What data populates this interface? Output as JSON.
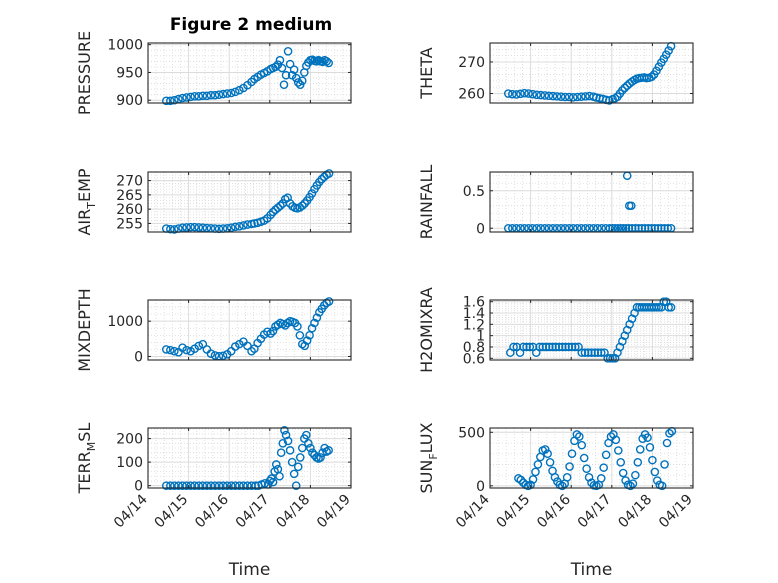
{
  "figure": {
    "title": "Figure 2 medium",
    "marker_color": "#0072bd",
    "grid_color": "#d9d9d9",
    "axis_color": "#262626"
  },
  "chart_data": [
    {
      "type": "scatter",
      "id": "pressure",
      "ylabel": "PRESSURE",
      "ylim": [
        895,
        1003
      ],
      "yticks": [
        900,
        950,
        1000
      ],
      "xlim": [
        14,
        19
      ],
      "xticks": [
        14,
        15,
        16,
        17,
        18,
        19
      ],
      "xticklabels": [],
      "x": [
        14.45,
        14.55,
        14.65,
        14.75,
        14.85,
        14.95,
        15.05,
        15.15,
        15.25,
        15.35,
        15.45,
        15.55,
        15.65,
        15.75,
        15.85,
        15.95,
        16.05,
        16.15,
        16.25,
        16.35,
        16.45,
        16.55,
        16.62,
        16.7,
        16.78,
        16.86,
        16.94,
        17.02,
        17.08,
        17.14,
        17.2,
        17.25,
        17.3,
        17.35,
        17.4,
        17.45,
        17.5,
        17.55,
        17.6,
        17.65,
        17.7,
        17.75,
        17.8,
        17.85,
        17.9,
        17.95,
        18.0,
        18.05,
        18.1,
        18.15,
        18.2,
        18.25,
        18.3,
        18.35,
        18.4,
        18.45
      ],
      "y": [
        899,
        899,
        900,
        902,
        904,
        905,
        906,
        907,
        907,
        908,
        908,
        909,
        909,
        910,
        911,
        912,
        913,
        915,
        918,
        922,
        927,
        933,
        938,
        942,
        946,
        949,
        952,
        956,
        958,
        960,
        964,
        972,
        958,
        928,
        945,
        988,
        965,
        945,
        955,
        940,
        932,
        928,
        935,
        950,
        962,
        968,
        972,
        973,
        971,
        970,
        972,
        970,
        969,
        972,
        970,
        967
      ]
    },
    {
      "type": "scatter",
      "id": "theta",
      "ylabel": "THETA",
      "ylim": [
        257,
        276
      ],
      "yticks": [
        260,
        270
      ],
      "xlim": [
        14,
        19
      ],
      "xticks": [
        14,
        15,
        16,
        17,
        18,
        19
      ],
      "xticklabels": [],
      "x": [
        14.45,
        14.55,
        14.65,
        14.75,
        14.85,
        14.95,
        15.05,
        15.15,
        15.25,
        15.35,
        15.45,
        15.55,
        15.65,
        15.75,
        15.85,
        15.95,
        16.05,
        16.15,
        16.25,
        16.35,
        16.45,
        16.55,
        16.62,
        16.7,
        16.78,
        16.86,
        16.94,
        17.02,
        17.08,
        17.14,
        17.2,
        17.26,
        17.32,
        17.38,
        17.44,
        17.5,
        17.56,
        17.62,
        17.68,
        17.74,
        17.8,
        17.86,
        17.92,
        17.98,
        18.04,
        18.1,
        18.16,
        18.22,
        18.28,
        18.34,
        18.4,
        18.46
      ],
      "y": [
        260.0,
        259.8,
        259.7,
        259.9,
        260.1,
        260.0,
        259.8,
        259.6,
        259.5,
        259.4,
        259.3,
        259.2,
        259.1,
        259.0,
        258.9,
        258.9,
        258.8,
        258.9,
        259.0,
        259.1,
        259.2,
        259.0,
        258.7,
        258.5,
        258.3,
        258.0,
        257.8,
        258.2,
        258.5,
        259.0,
        260.0,
        261.0,
        261.8,
        262.5,
        263.2,
        263.8,
        264.3,
        264.7,
        264.9,
        265.0,
        265.1,
        264.9,
        265.0,
        265.3,
        266.0,
        267.2,
        268.5,
        269.8,
        271.0,
        272.3,
        273.6,
        275.0
      ]
    },
    {
      "type": "scatter",
      "id": "air_temp",
      "ylabel": "AIR",
      "ylabel_sub": "T",
      "ylabel_rest": "EMP",
      "ylim": [
        252,
        273
      ],
      "yticks": [
        255,
        260,
        265,
        270
      ],
      "xlim": [
        14,
        19
      ],
      "xticks": [
        14,
        15,
        16,
        17,
        18,
        19
      ],
      "xticklabels": [],
      "x": [
        14.45,
        14.55,
        14.65,
        14.75,
        14.85,
        14.95,
        15.05,
        15.15,
        15.25,
        15.35,
        15.45,
        15.55,
        15.65,
        15.75,
        15.85,
        15.95,
        16.05,
        16.15,
        16.25,
        16.35,
        16.45,
        16.55,
        16.62,
        16.7,
        16.78,
        16.86,
        16.94,
        17.02,
        17.08,
        17.14,
        17.2,
        17.26,
        17.32,
        17.38,
        17.44,
        17.5,
        17.56,
        17.62,
        17.68,
        17.74,
        17.8,
        17.86,
        17.92,
        17.98,
        18.04,
        18.1,
        18.16,
        18.22,
        18.28,
        18.34,
        18.4,
        18.46
      ],
      "y": [
        253.2,
        253.0,
        252.9,
        253.2,
        253.5,
        253.6,
        253.7,
        253.7,
        253.6,
        253.5,
        253.4,
        253.3,
        253.2,
        253.1,
        253.2,
        253.3,
        253.5,
        253.8,
        254.0,
        254.3,
        254.6,
        254.8,
        255.0,
        255.2,
        255.6,
        256.0,
        256.8,
        258.0,
        259.0,
        259.8,
        260.5,
        261.2,
        262.0,
        263.5,
        264.0,
        262.0,
        261.0,
        260.5,
        260.3,
        260.6,
        261.2,
        262.0,
        263.0,
        264.2,
        265.5,
        267.0,
        268.3,
        269.5,
        270.5,
        271.3,
        272.0,
        272.5
      ]
    },
    {
      "type": "scatter",
      "id": "rainfall",
      "ylabel": "RAINFALL",
      "ylim": [
        -0.05,
        0.75
      ],
      "yticks": [
        0,
        0.5
      ],
      "xlim": [
        14,
        19
      ],
      "xticks": [
        14,
        15,
        16,
        17,
        18,
        19
      ],
      "xticklabels": [],
      "x": [
        14.45,
        14.55,
        14.65,
        14.75,
        14.85,
        14.95,
        15.05,
        15.15,
        15.25,
        15.35,
        15.45,
        15.55,
        15.65,
        15.75,
        15.85,
        15.95,
        16.05,
        16.15,
        16.25,
        16.35,
        16.45,
        16.55,
        16.65,
        16.75,
        16.85,
        16.95,
        17.02,
        17.08,
        17.15,
        17.22,
        17.28,
        17.35,
        17.42,
        17.5,
        17.58,
        17.66,
        17.74,
        17.82,
        17.9,
        17.98,
        18.06,
        18.14,
        18.22,
        18.3,
        18.38,
        18.46,
        17.38,
        17.43,
        17.48
      ],
      "y": [
        0,
        0,
        0,
        0,
        0,
        0,
        0,
        0,
        0,
        0,
        0,
        0,
        0,
        0,
        0,
        0,
        0,
        0,
        0,
        0,
        0,
        0,
        0,
        0,
        0,
        0,
        0,
        0,
        0,
        0,
        0,
        0,
        0,
        0,
        0,
        0,
        0,
        0,
        0,
        0,
        0,
        0,
        0,
        0,
        0,
        0,
        0.7,
        0.3,
        0.3
      ]
    },
    {
      "type": "scatter",
      "id": "mixdepth",
      "ylabel": "MIXDEPTH",
      "ylim": [
        -100,
        1600
      ],
      "yticks": [
        0,
        1000
      ],
      "xlim": [
        14,
        19
      ],
      "xticks": [
        14,
        15,
        16,
        17,
        18,
        19
      ],
      "xticklabels": [],
      "x": [
        14.45,
        14.55,
        14.65,
        14.75,
        14.85,
        14.95,
        15.05,
        15.15,
        15.25,
        15.35,
        15.45,
        15.55,
        15.65,
        15.75,
        15.85,
        15.95,
        16.05,
        16.15,
        16.25,
        16.35,
        16.45,
        16.55,
        16.62,
        16.7,
        16.78,
        16.86,
        16.94,
        17.02,
        17.08,
        17.14,
        17.2,
        17.26,
        17.32,
        17.38,
        17.44,
        17.5,
        17.56,
        17.62,
        17.68,
        17.74,
        17.8,
        17.86,
        17.92,
        17.98,
        18.04,
        18.1,
        18.16,
        18.22,
        18.28,
        18.34,
        18.4,
        18.46
      ],
      "y": [
        200,
        180,
        150,
        120,
        250,
        180,
        150,
        220,
        300,
        350,
        200,
        80,
        30,
        10,
        20,
        60,
        150,
        280,
        350,
        420,
        300,
        150,
        220,
        380,
        500,
        620,
        700,
        650,
        720,
        850,
        900,
        950,
        920,
        880,
        950,
        1000,
        980,
        950,
        850,
        600,
        350,
        300,
        450,
        600,
        800,
        950,
        1100,
        1250,
        1350,
        1450,
        1520,
        1560
      ]
    },
    {
      "type": "scatter",
      "id": "h2omixra",
      "ylabel": "H2OMIXRA",
      "ylim": [
        0.57,
        1.63
      ],
      "yticks": [
        0.6,
        0.8,
        1,
        1.2,
        1.4,
        1.6
      ],
      "xlim": [
        14,
        19
      ],
      "xticks": [
        14,
        15,
        16,
        17,
        18,
        19
      ],
      "xticklabels": [],
      "x": [
        14.5,
        14.58,
        14.66,
        14.74,
        14.82,
        14.9,
        14.98,
        15.06,
        15.14,
        15.22,
        15.3,
        15.38,
        15.46,
        15.54,
        15.62,
        15.7,
        15.78,
        15.86,
        15.94,
        16.02,
        16.1,
        16.18,
        16.26,
        16.34,
        16.42,
        16.5,
        16.58,
        16.66,
        16.74,
        16.82,
        16.9,
        16.96,
        17.02,
        17.08,
        17.14,
        17.2,
        17.26,
        17.32,
        17.38,
        17.44,
        17.5,
        17.56,
        17.62,
        17.68,
        17.74,
        17.8,
        17.86,
        17.92,
        17.98,
        18.04,
        18.1,
        18.16,
        18.22,
        18.28,
        18.34,
        18.4,
        18.46
      ],
      "y": [
        0.7,
        0.8,
        0.8,
        0.7,
        0.8,
        0.8,
        0.8,
        0.8,
        0.7,
        0.8,
        0.8,
        0.8,
        0.8,
        0.8,
        0.8,
        0.8,
        0.8,
        0.8,
        0.8,
        0.8,
        0.8,
        0.8,
        0.7,
        0.7,
        0.7,
        0.7,
        0.7,
        0.7,
        0.7,
        0.7,
        0.6,
        0.6,
        0.6,
        0.6,
        0.7,
        0.8,
        0.9,
        1.0,
        1.1,
        1.2,
        1.3,
        1.4,
        1.5,
        1.5,
        1.5,
        1.5,
        1.5,
        1.5,
        1.5,
        1.5,
        1.5,
        1.5,
        1.5,
        1.6,
        1.6,
        1.5,
        1.5
      ]
    },
    {
      "type": "scatter",
      "id": "terr_msl",
      "ylabel": "TERR",
      "ylabel_sub": "M",
      "ylabel_rest": "SL",
      "ylim": [
        -10,
        245
      ],
      "yticks": [
        0,
        100,
        200
      ],
      "xlim": [
        14,
        19
      ],
      "xticks": [
        14,
        15,
        16,
        17,
        18,
        19
      ],
      "xticklabels": [
        "04/14",
        "04/15",
        "04/16",
        "04/17",
        "04/18",
        "04/19"
      ],
      "xlabel": "Time",
      "x": [
        14.45,
        14.55,
        14.65,
        14.75,
        14.85,
        14.95,
        15.05,
        15.15,
        15.25,
        15.35,
        15.45,
        15.55,
        15.65,
        15.75,
        15.85,
        15.95,
        16.05,
        16.15,
        16.25,
        16.35,
        16.45,
        16.55,
        16.65,
        16.72,
        16.8,
        16.88,
        16.96,
        17.0,
        17.04,
        17.08,
        17.12,
        17.16,
        17.2,
        17.24,
        17.28,
        17.32,
        17.36,
        17.4,
        17.45,
        17.5,
        17.55,
        17.6,
        17.65,
        17.7,
        17.75,
        17.8,
        17.85,
        17.9,
        17.95,
        18.0,
        18.05,
        18.1,
        18.15,
        18.2,
        18.25,
        18.3,
        18.35,
        18.4,
        18.45
      ],
      "y": [
        0,
        0,
        0,
        0,
        0,
        0,
        0,
        0,
        0,
        0,
        0,
        0,
        0,
        0,
        0,
        0,
        0,
        0,
        0,
        0,
        0,
        0,
        0,
        0,
        5,
        10,
        5,
        20,
        30,
        15,
        60,
        90,
        70,
        40,
        140,
        180,
        235,
        215,
        190,
        150,
        100,
        50,
        0,
        80,
        120,
        160,
        200,
        215,
        180,
        160,
        140,
        130,
        120,
        115,
        120,
        140,
        160,
        145,
        150
      ]
    },
    {
      "type": "scatter",
      "id": "sun_flux",
      "ylabel": "SUN",
      "ylabel_sub": "F",
      "ylabel_rest": "LUX",
      "ylim": [
        -20,
        540
      ],
      "yticks": [
        0,
        500
      ],
      "xlim": [
        14,
        19
      ],
      "xticks": [
        14,
        15,
        16,
        17,
        18,
        19
      ],
      "xticklabels": [
        "04/14",
        "04/15",
        "04/16",
        "04/17",
        "04/18",
        "04/19"
      ],
      "xlabel": "Time",
      "x": [
        14.7,
        14.76,
        14.82,
        14.88,
        14.94,
        15.0,
        15.06,
        15.12,
        15.18,
        15.24,
        15.3,
        15.36,
        15.42,
        15.48,
        15.54,
        15.6,
        15.66,
        15.72,
        15.78,
        15.84,
        15.9,
        15.96,
        16.02,
        16.08,
        16.14,
        16.2,
        16.26,
        16.32,
        16.38,
        16.44,
        16.5,
        16.56,
        16.62,
        16.68,
        16.74,
        16.8,
        16.86,
        16.92,
        16.98,
        17.04,
        17.1,
        17.16,
        17.22,
        17.28,
        17.34,
        17.4,
        17.46,
        17.52,
        17.58,
        17.64,
        17.7,
        17.76,
        17.82,
        17.88,
        17.94,
        18.0,
        18.06,
        18.12,
        18.18,
        18.24,
        18.3,
        18.36,
        18.42,
        18.48
      ],
      "y": [
        70,
        55,
        30,
        10,
        0,
        10,
        60,
        130,
        200,
        270,
        330,
        340,
        300,
        220,
        140,
        80,
        40,
        10,
        0,
        20,
        80,
        180,
        300,
        420,
        480,
        460,
        380,
        260,
        160,
        80,
        30,
        5,
        0,
        10,
        70,
        170,
        290,
        400,
        460,
        480,
        430,
        330,
        220,
        120,
        50,
        10,
        0,
        20,
        100,
        220,
        340,
        440,
        480,
        450,
        360,
        240,
        130,
        50,
        10,
        0,
        200,
        400,
        490,
        510
      ]
    }
  ]
}
